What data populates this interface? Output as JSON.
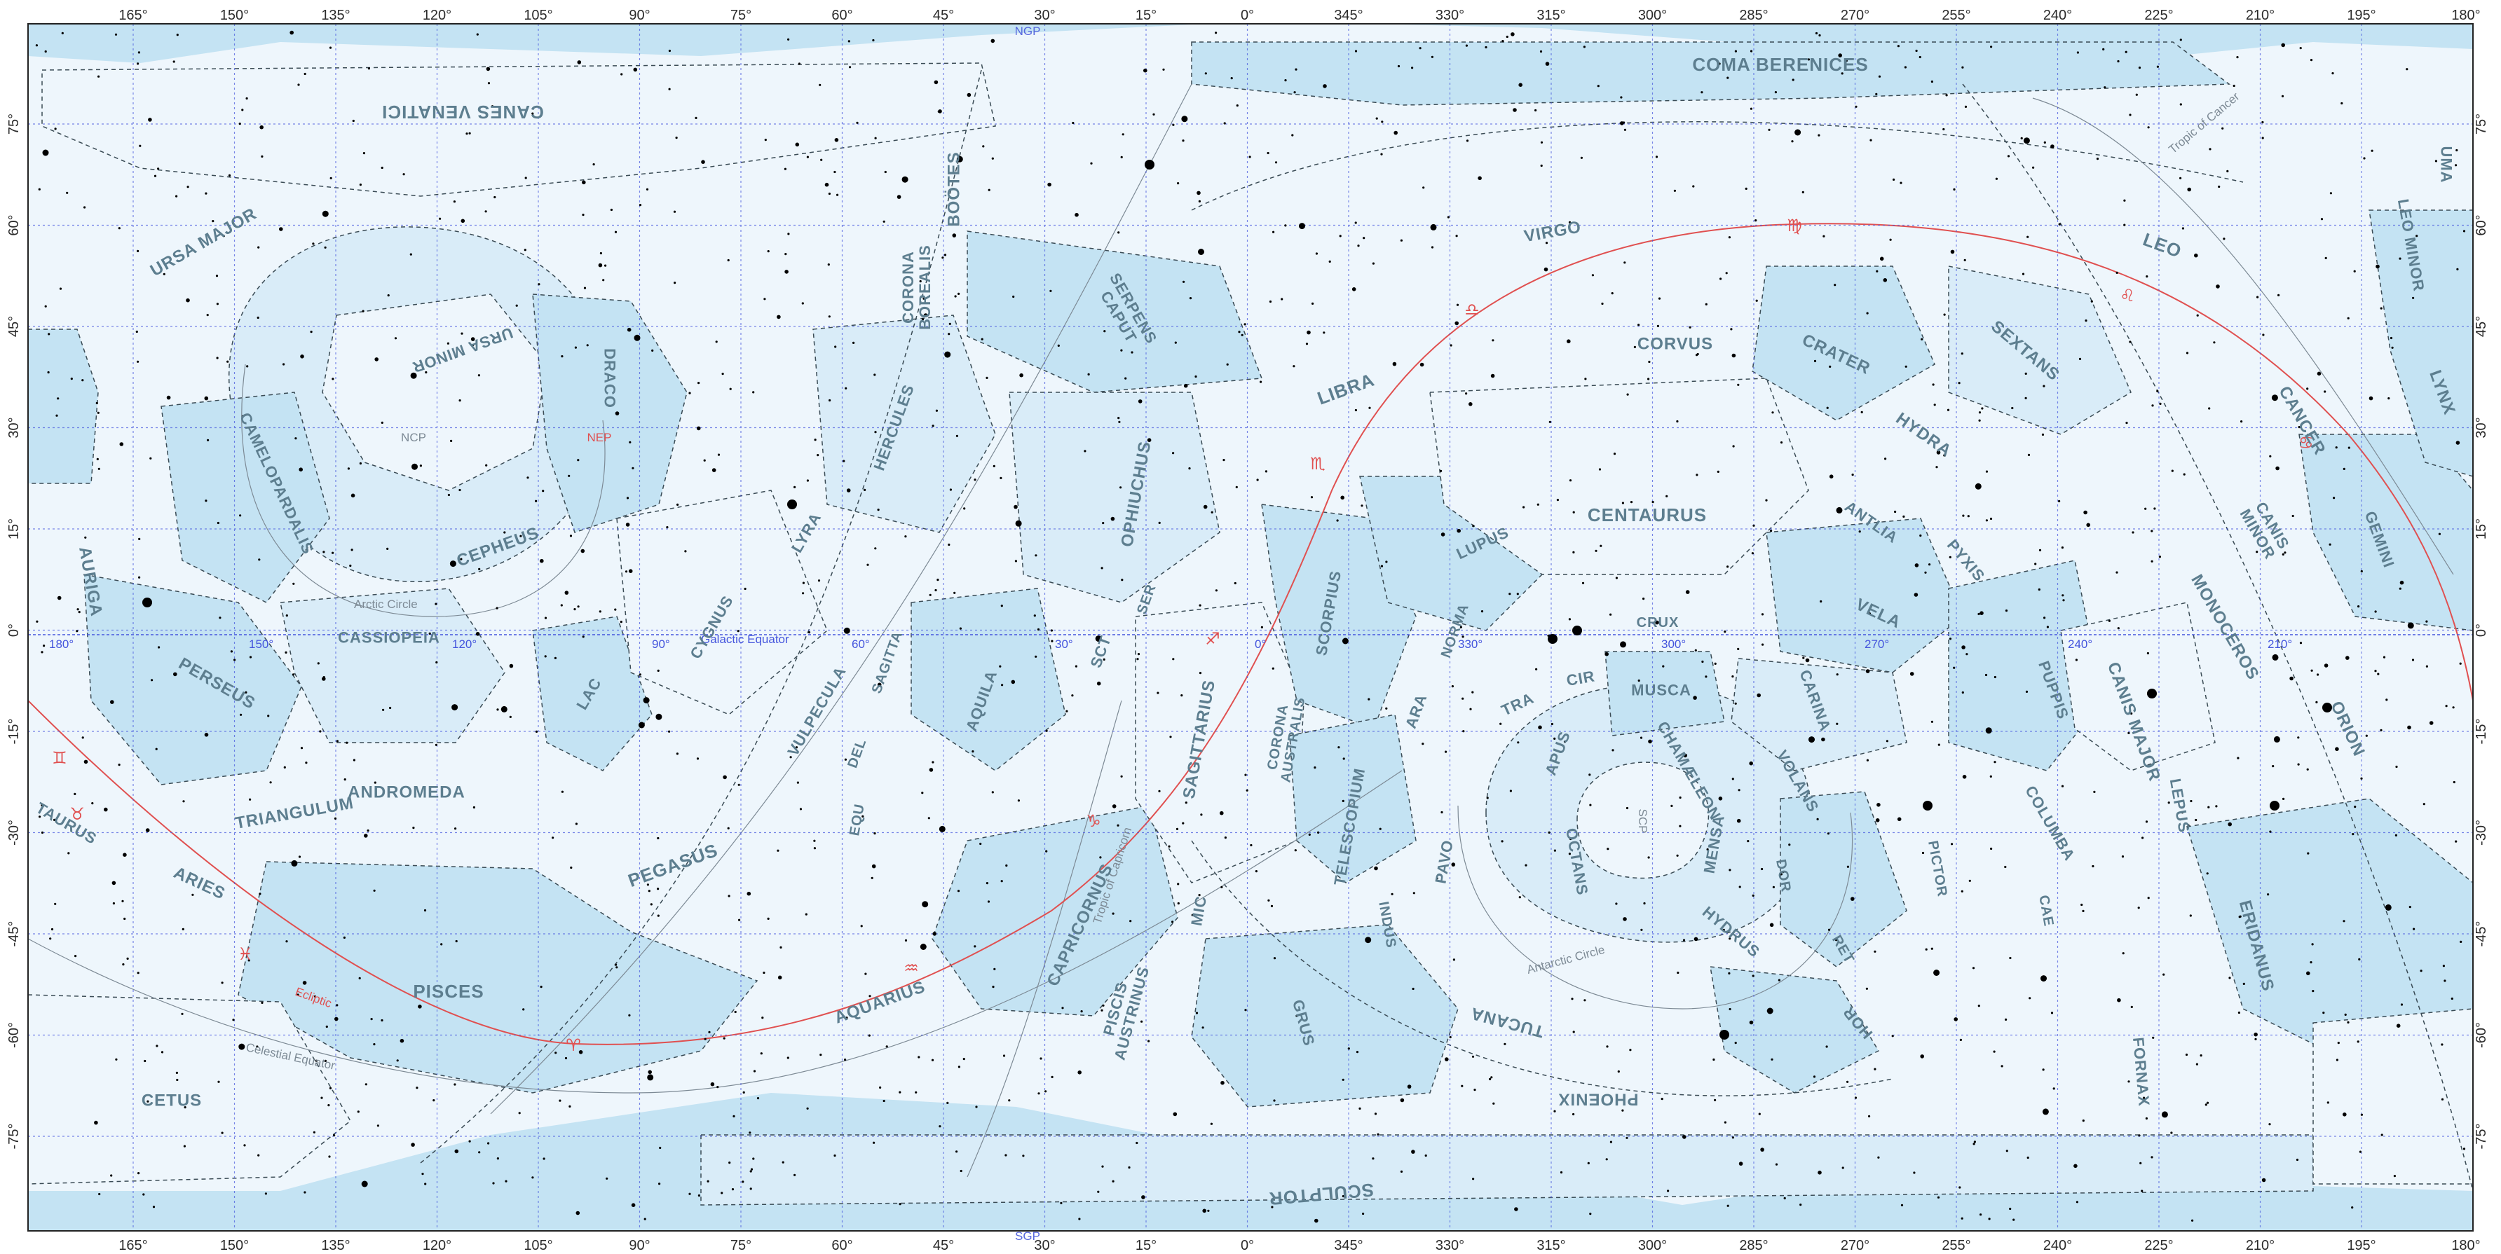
{
  "ra_ticks": [
    "165°",
    "150°",
    "135°",
    "120°",
    "105°",
    "90°",
    "75°",
    "60°",
    "45°",
    "30°",
    "15°",
    "0°",
    "345°",
    "330°",
    "315°",
    "300°",
    "285°",
    "270°",
    "255°",
    "240°",
    "225°",
    "210°",
    "195°",
    "180°"
  ],
  "dec_ticks_left": [
    "75°",
    "60°",
    "45°",
    "30°",
    "15°",
    "0°",
    "-15°",
    "-30°",
    "-45°",
    "-60°",
    "-75°"
  ],
  "dec_ticks_right": [
    "75°",
    "60°",
    "45°",
    "30°",
    "15°",
    "0°",
    "-15°",
    "-30°",
    "-45°",
    "-60°",
    "-75°"
  ],
  "poles": {
    "north": "NGP",
    "south": "SGP",
    "ncp": "NCP",
    "nep": "NEP",
    "scp": "SCP"
  },
  "galactic_longitudes": [
    "180°",
    "150°",
    "120°",
    "90°",
    "60°",
    "30°",
    "0°",
    "330°",
    "300°",
    "270°",
    "240°",
    "210°"
  ],
  "reference_lines": {
    "ecliptic": "Ecliptic",
    "celestial_equator": "Celestial Equator",
    "galactic_equator": "Galactic Equator",
    "arctic_circle": "Arctic Circle",
    "antarctic_circle": "Antarctic Circle",
    "tropic_cancer": "Tropic of Cancer",
    "tropic_capricorn": "Tropic of Capricorn"
  },
  "zodiac_symbols": [
    "♈",
    "♉",
    "♊",
    "♋",
    "♌",
    "♍",
    "♎",
    "♏",
    "♐",
    "♑",
    "♒",
    "♓"
  ],
  "constellations": [
    "COMA BERENICES",
    "CANES VENATICI",
    "URSA MAJOR",
    "URSA MINOR",
    "DRACO",
    "BOÖTES",
    "CORONA BOREALIS",
    "SERPENS CAPUT",
    "HERCULES",
    "LYRA",
    "VIRGO",
    "CORVUS",
    "CRATER",
    "LEO",
    "LEO MINOR",
    "UMA",
    "LYNX",
    "SEXTANS",
    "HYDRA",
    "CANCER",
    "LIBRA",
    "OPHIUCHUS",
    "CENTAURUS",
    "LUPUS",
    "ANTLIA",
    "PYXIS",
    "CANIS MINOR",
    "GEMINI",
    "CAMELOPARDALIS",
    "CEPHEUS",
    "AURIGA",
    "CASSIOPEIA",
    "CYGNUS",
    "VULPECULA",
    "SAGITTA",
    "SER",
    "SCT",
    "SCORPIUS",
    "NORMA",
    "CRUX",
    "VELA",
    "MONOCEROS",
    "PERSEUS",
    "LAC",
    "AQUILA",
    "SAGITTARIUS",
    "CORONA AUSTRALIS",
    "ARA",
    "TRA",
    "CIR",
    "MUSCA",
    "CARINA",
    "PUPPIS",
    "CANIS MAJOR",
    "ORION",
    "TRIANGULUM",
    "ANDROMEDA",
    "DEL",
    "EQU",
    "TELESCOPIUM",
    "APUS",
    "CHAMÆLEON",
    "VOLANS",
    "COLUMBA",
    "LEPUS",
    "TAURUS",
    "ARIES",
    "PEGASUS",
    "CAPRICORNUS",
    "MIC",
    "PAVO",
    "OCTANS",
    "MENSA",
    "DOR",
    "PICTOR",
    "CAE",
    "INDUS",
    "HYDRUS",
    "RET",
    "ERIDANUS",
    "PISCES",
    "AQUARIUS",
    "PISCIS AUSTRINUS",
    "GRUS",
    "TUCANA",
    "HOR",
    "FORNAX",
    "CETUS",
    "PHOENIX",
    "SCULPTOR"
  ],
  "colors": {
    "light_region": "#eef6fc",
    "mid_region": "#d9ecf8",
    "dark_region": "#c4e3f3",
    "grid": "#4455dd",
    "ecliptic": "#e05050",
    "label": "#5d7e8f",
    "pole_blue": "#5566dd",
    "pole_red": "#e05050"
  }
}
